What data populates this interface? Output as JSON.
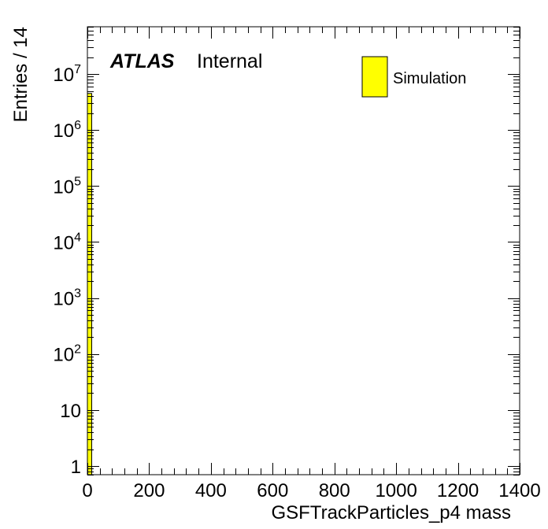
{
  "chart_data": {
    "type": "bar",
    "xlabel": "GSFTrackParticles_p4 mass",
    "ylabel": "Entries / 14",
    "xlim": [
      0,
      1400
    ],
    "ylim": [
      0.7,
      70000000
    ],
    "yscale": "log",
    "grid": false,
    "legend_position": "top-right",
    "bin_width": 14,
    "bins": [
      {
        "x_low": 0,
        "x_high": 14,
        "value": 4500000
      }
    ],
    "series": [
      {
        "name": "Simulation",
        "color": "#ffff00"
      }
    ],
    "x_tick_labels": [
      "0",
      "200",
      "400",
      "600",
      "800",
      "1000",
      "1200",
      "1400"
    ],
    "y_tick_labels": [
      {
        "value": 1,
        "base": "1",
        "exp": ""
      },
      {
        "value": 10,
        "base": "10",
        "exp": ""
      },
      {
        "value": 100,
        "base": "10",
        "exp": "2"
      },
      {
        "value": 1000,
        "base": "10",
        "exp": "3"
      },
      {
        "value": 10000,
        "base": "10",
        "exp": "4"
      },
      {
        "value": 100000,
        "base": "10",
        "exp": "5"
      },
      {
        "value": 1000000,
        "base": "10",
        "exp": "6"
      },
      {
        "value": 10000000,
        "base": "10",
        "exp": "7"
      }
    ],
    "annotation": {
      "experiment": "ATLAS",
      "status": "Internal"
    },
    "colors": {
      "fill": "#ffff00",
      "line": "#000000"
    }
  }
}
